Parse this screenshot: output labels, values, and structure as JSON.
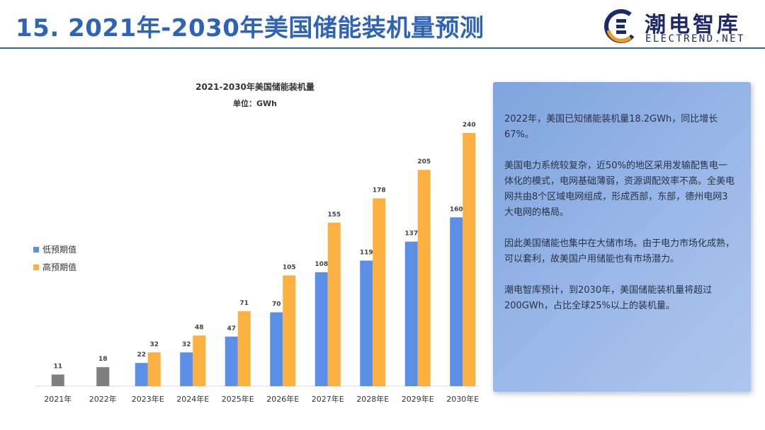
{
  "page": {
    "title": "15. 2021年-2030年美国储能装机量预测"
  },
  "logo": {
    "name": "潮电智库",
    "sub": "ELECTREND.NET",
    "accent_orange": "#f29a1f",
    "accent_navy": "#1c2a6b"
  },
  "chart_data": {
    "type": "bar",
    "title": "2021-2030年美国储能装机量",
    "subtitle": "单位：GWh",
    "categories": [
      "2021年",
      "2022年",
      "2023年E",
      "2024年E",
      "2025年E",
      "2026年E",
      "2027年E",
      "2028年E",
      "2029年E",
      "2030年E"
    ],
    "actual": {
      "values": [
        11,
        18,
        null,
        null,
        null,
        null,
        null,
        null,
        null,
        null
      ],
      "color": "#7f7f7f"
    },
    "series": [
      {
        "name": "低预期值",
        "color": "#5b8ee6",
        "values": [
          null,
          null,
          22,
          32,
          47,
          70,
          108,
          119,
          137,
          160
        ]
      },
      {
        "name": "高预期值",
        "color": "#fbb040",
        "values": [
          null,
          null,
          32,
          48,
          71,
          105,
          155,
          178,
          205,
          240
        ]
      }
    ],
    "ylim": [
      0,
      240
    ],
    "grid": false,
    "legend": "left"
  },
  "infobox": {
    "paragraphs": [
      "2022年，美国已知储能装机量18.2GWh，同比增长67%。",
      "美国电力系统较复杂，近50%的地区采用发输配售电一体化的模式，电网基础薄弱，资源调配效率不高。全美电网共由8个区域电网组成，形成西部，东部，德州电网3大电网的格局。",
      "因此美国储能也集中在大储市场。由于电力市场化成熟，可以套利，故美国户用储能也有市场潜力。",
      "潮电智库预计，到2030年，美国储能装机量将超过200GWh，占比全球25%以上的装机量。"
    ]
  }
}
